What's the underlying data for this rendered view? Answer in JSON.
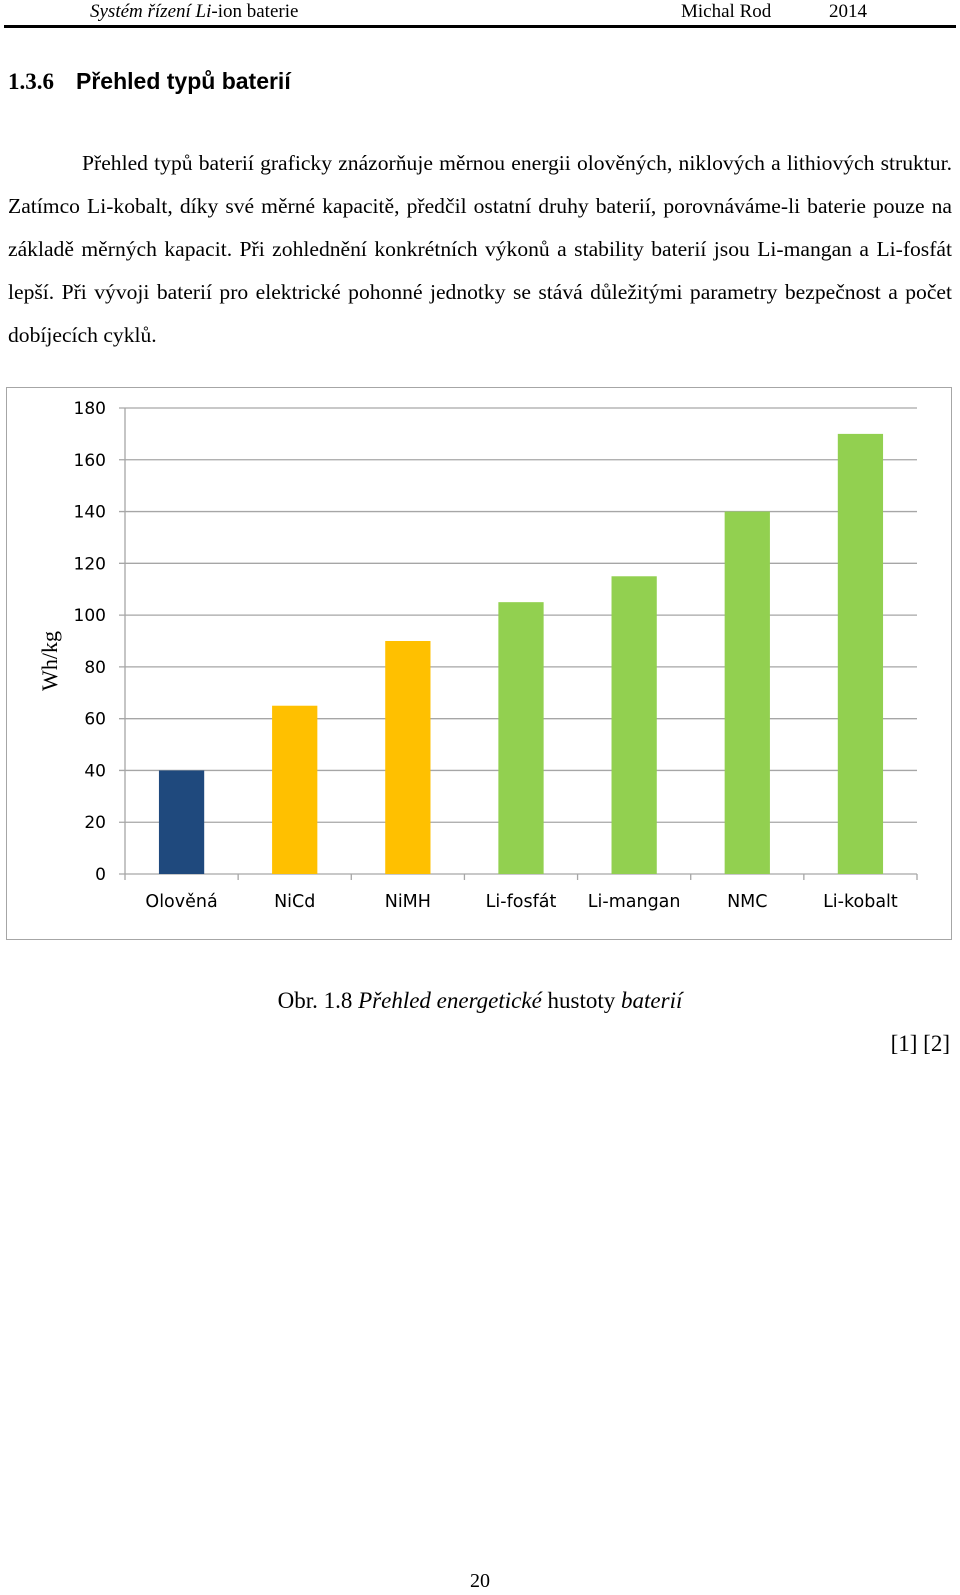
{
  "header": {
    "title_italic_1": "Systém řízení Li",
    "title_rest": "-ion baterie",
    "author": "Michal Rod",
    "year": "2014"
  },
  "section": {
    "number": "1.3.6",
    "title": "Přehled typů baterií"
  },
  "paragraph": "Přehled typů baterií graficky znázorňuje měrnou energii olověných, niklových a lithiových struktur. Zatímco Li-kobalt, díky své měrné kapacitě, předčil ostatní druhy baterií, porovnáváme-li baterie pouze na základě měrných kapacit. Při zohlednění konkrétních výkonů a stability baterií jsou Li-mangan a Li-fosfát lepší. Při vývoji baterií pro elektrické pohonné jednotky se stává důležitými parametry bezpečnost a počet dobíjecích cyklů.",
  "chart_data": {
    "type": "bar",
    "categories": [
      "Olověná",
      "NiCd",
      "NiMH",
      "Li-fosfát",
      "Li-mangan",
      "NMC",
      "Li-kobalt"
    ],
    "values": [
      40,
      65,
      90,
      105,
      115,
      140,
      170
    ],
    "bar_colors": [
      "#1f497d",
      "#ffc000",
      "#ffc000",
      "#92d050",
      "#92d050",
      "#92d050",
      "#92d050"
    ],
    "title": "",
    "xlabel": "",
    "ylabel": "Wh/kg",
    "ylim": [
      0,
      180
    ],
    "yticks": [
      0,
      20,
      40,
      60,
      80,
      100,
      120,
      140,
      160,
      180
    ],
    "grid": true,
    "legend": "none",
    "gridline_color": "#a6a6a6"
  },
  "caption": {
    "prefix": "Obr. 1.8 ",
    "italic_1": "Přehled energetické",
    "middle": " hustoty ",
    "italic_2": "baterií"
  },
  "references": "[1] [2]",
  "page_number": "20"
}
